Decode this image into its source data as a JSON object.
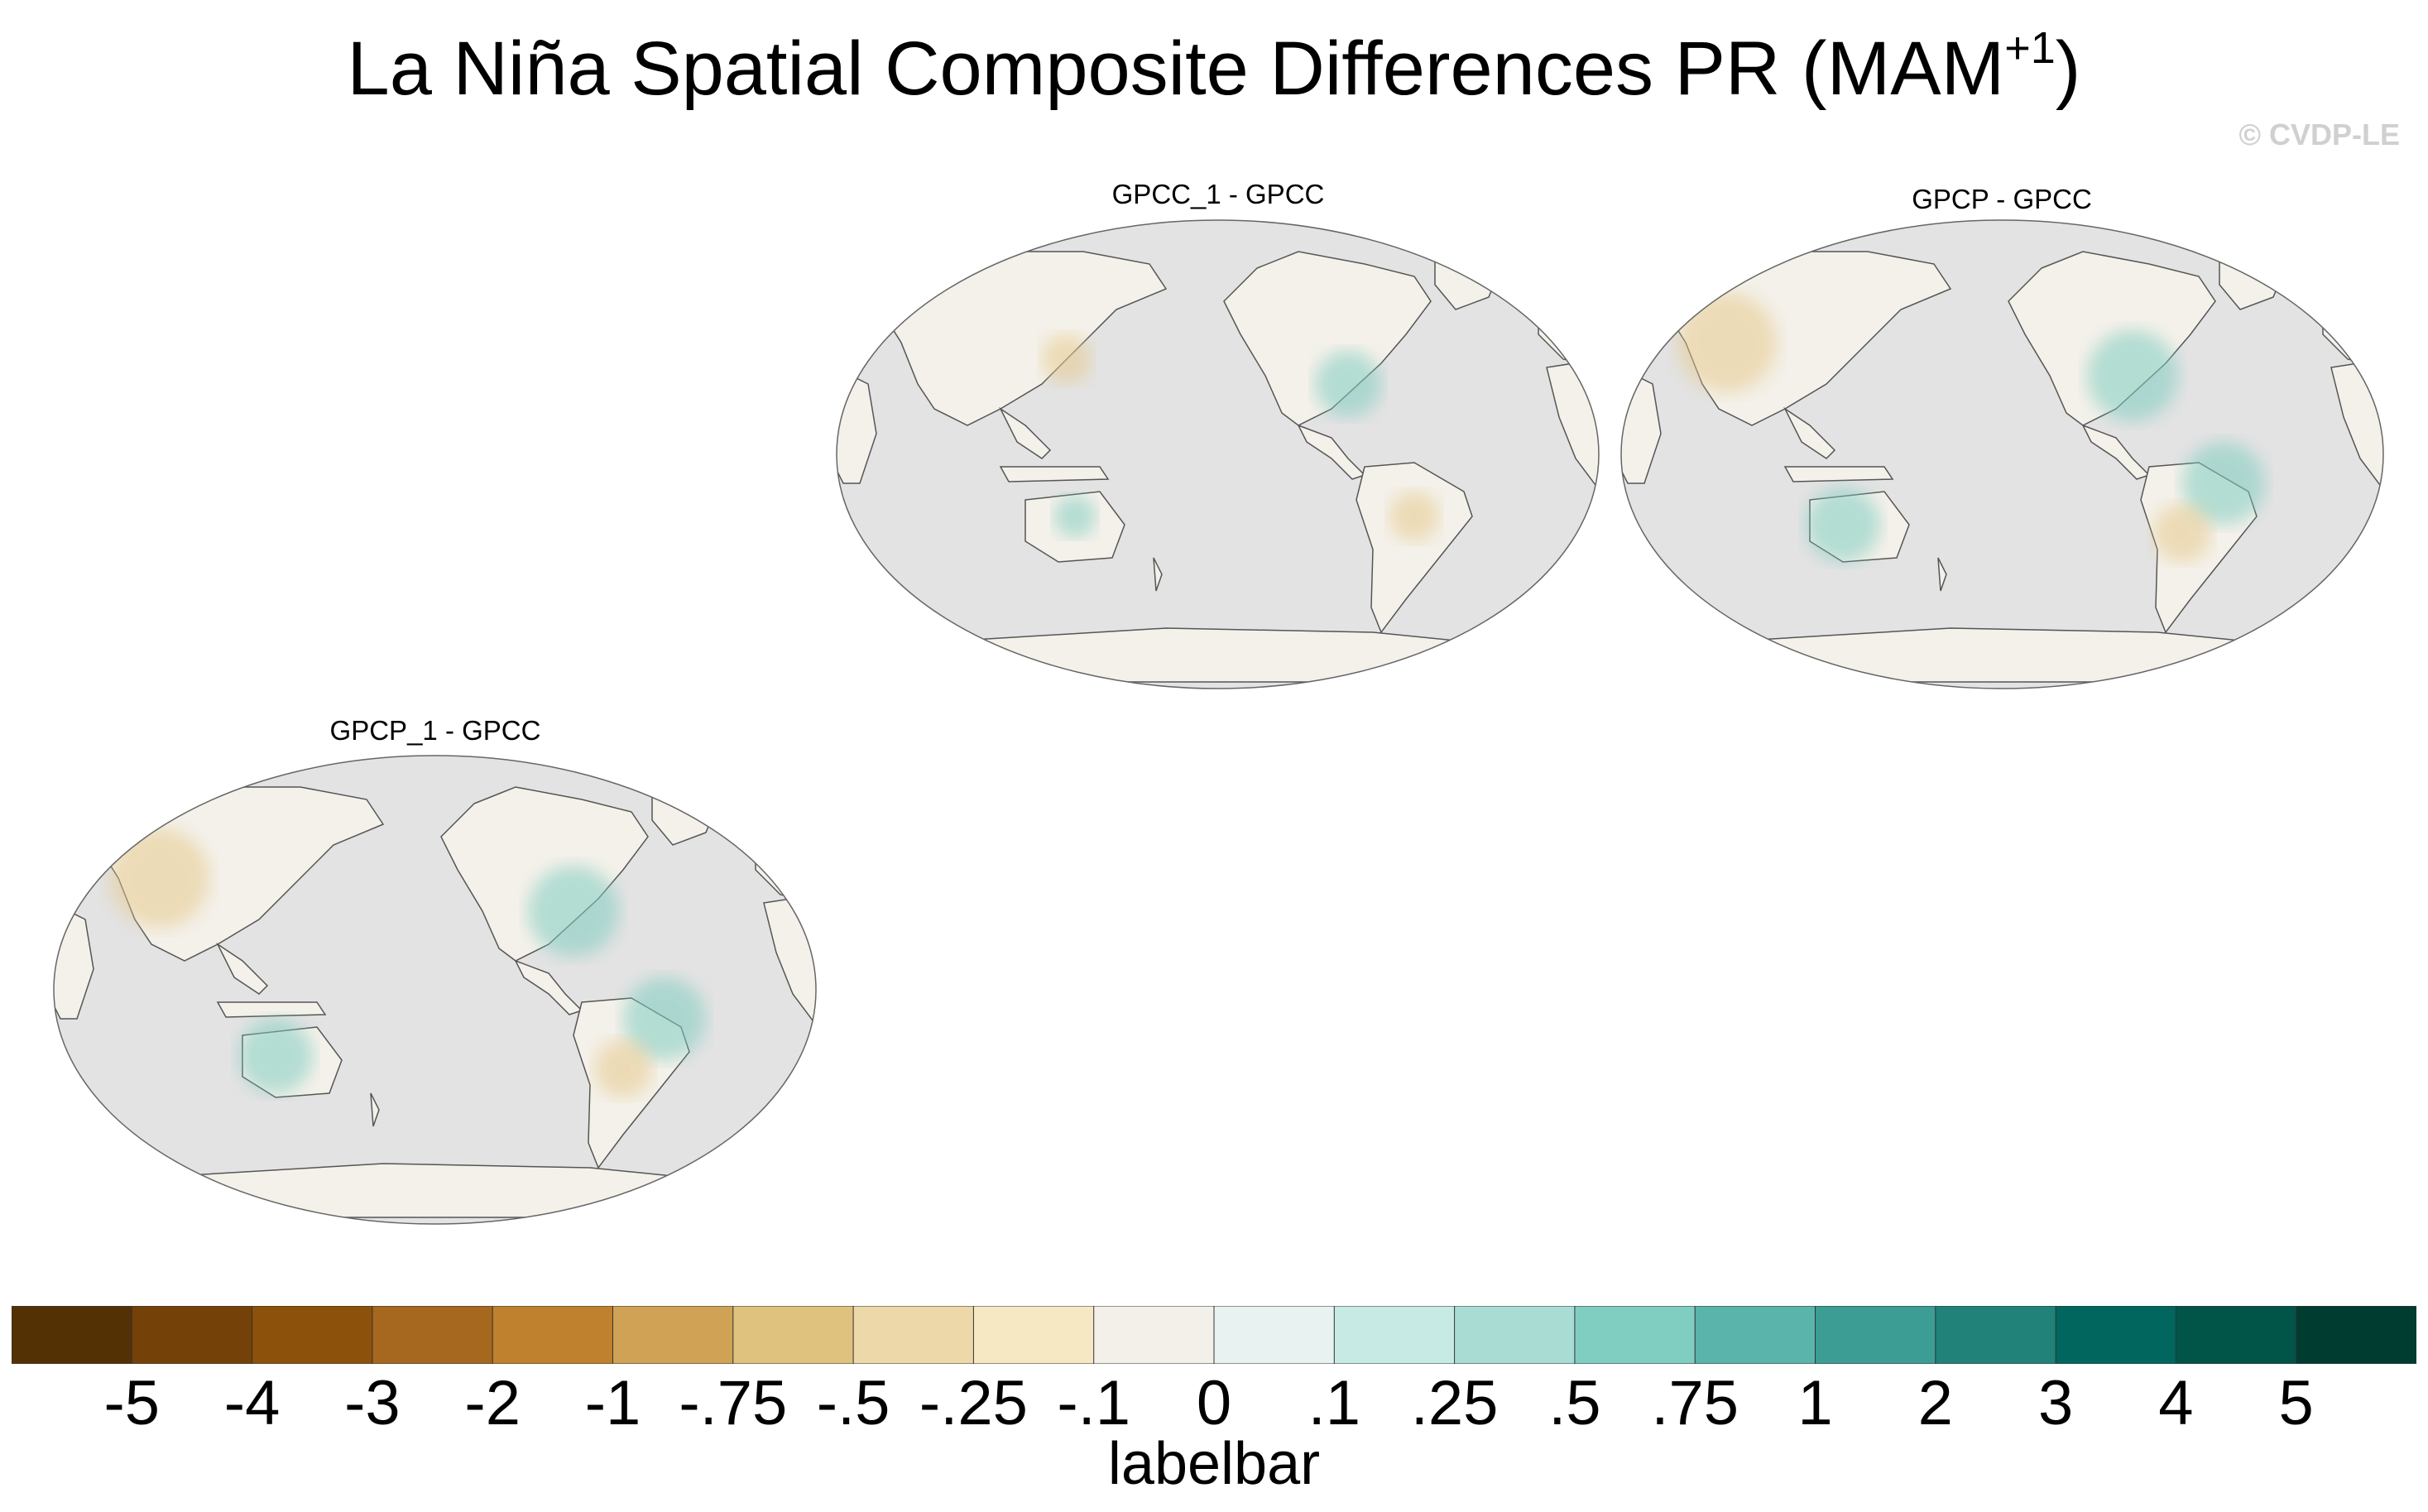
{
  "title": {
    "main": "La Niña Spatial Composite Differences PR (MAM",
    "sup": "+1",
    "close": ")"
  },
  "watermark": "© CVDP-LE",
  "panels": [
    {
      "title": "GPCC_1 - GPCC"
    },
    {
      "title": "GPCP - GPCC"
    },
    {
      "title": "GPCP_1 - GPCC"
    }
  ],
  "colorbar": {
    "title": "labelbar",
    "labels": [
      "-5",
      "-4",
      "-3",
      "-2",
      "-1",
      "-.75",
      "-.5",
      "-.25",
      "-.1",
      "0",
      ".1",
      ".25",
      ".5",
      ".75",
      "1",
      "2",
      "3",
      "4",
      "5"
    ],
    "colors": [
      "#543005",
      "#744108",
      "#8c510a",
      "#a6671f",
      "#bf812d",
      "#cfa255",
      "#dfc27d",
      "#ecd8a8",
      "#f6e8c3",
      "#f3f0ea",
      "#e8f3f1",
      "#c7eae5",
      "#a9ddd4",
      "#80cdc1",
      "#5ab4ac",
      "#3b9d94",
      "#208278",
      "#01665e",
      "#015448",
      "#003c30"
    ]
  },
  "map_style": {
    "ocean": "#e3e3e3",
    "land": "#f4f1ea",
    "coast": "#555555",
    "dry": "#e6c98c",
    "wet": "#7fccc0"
  }
}
